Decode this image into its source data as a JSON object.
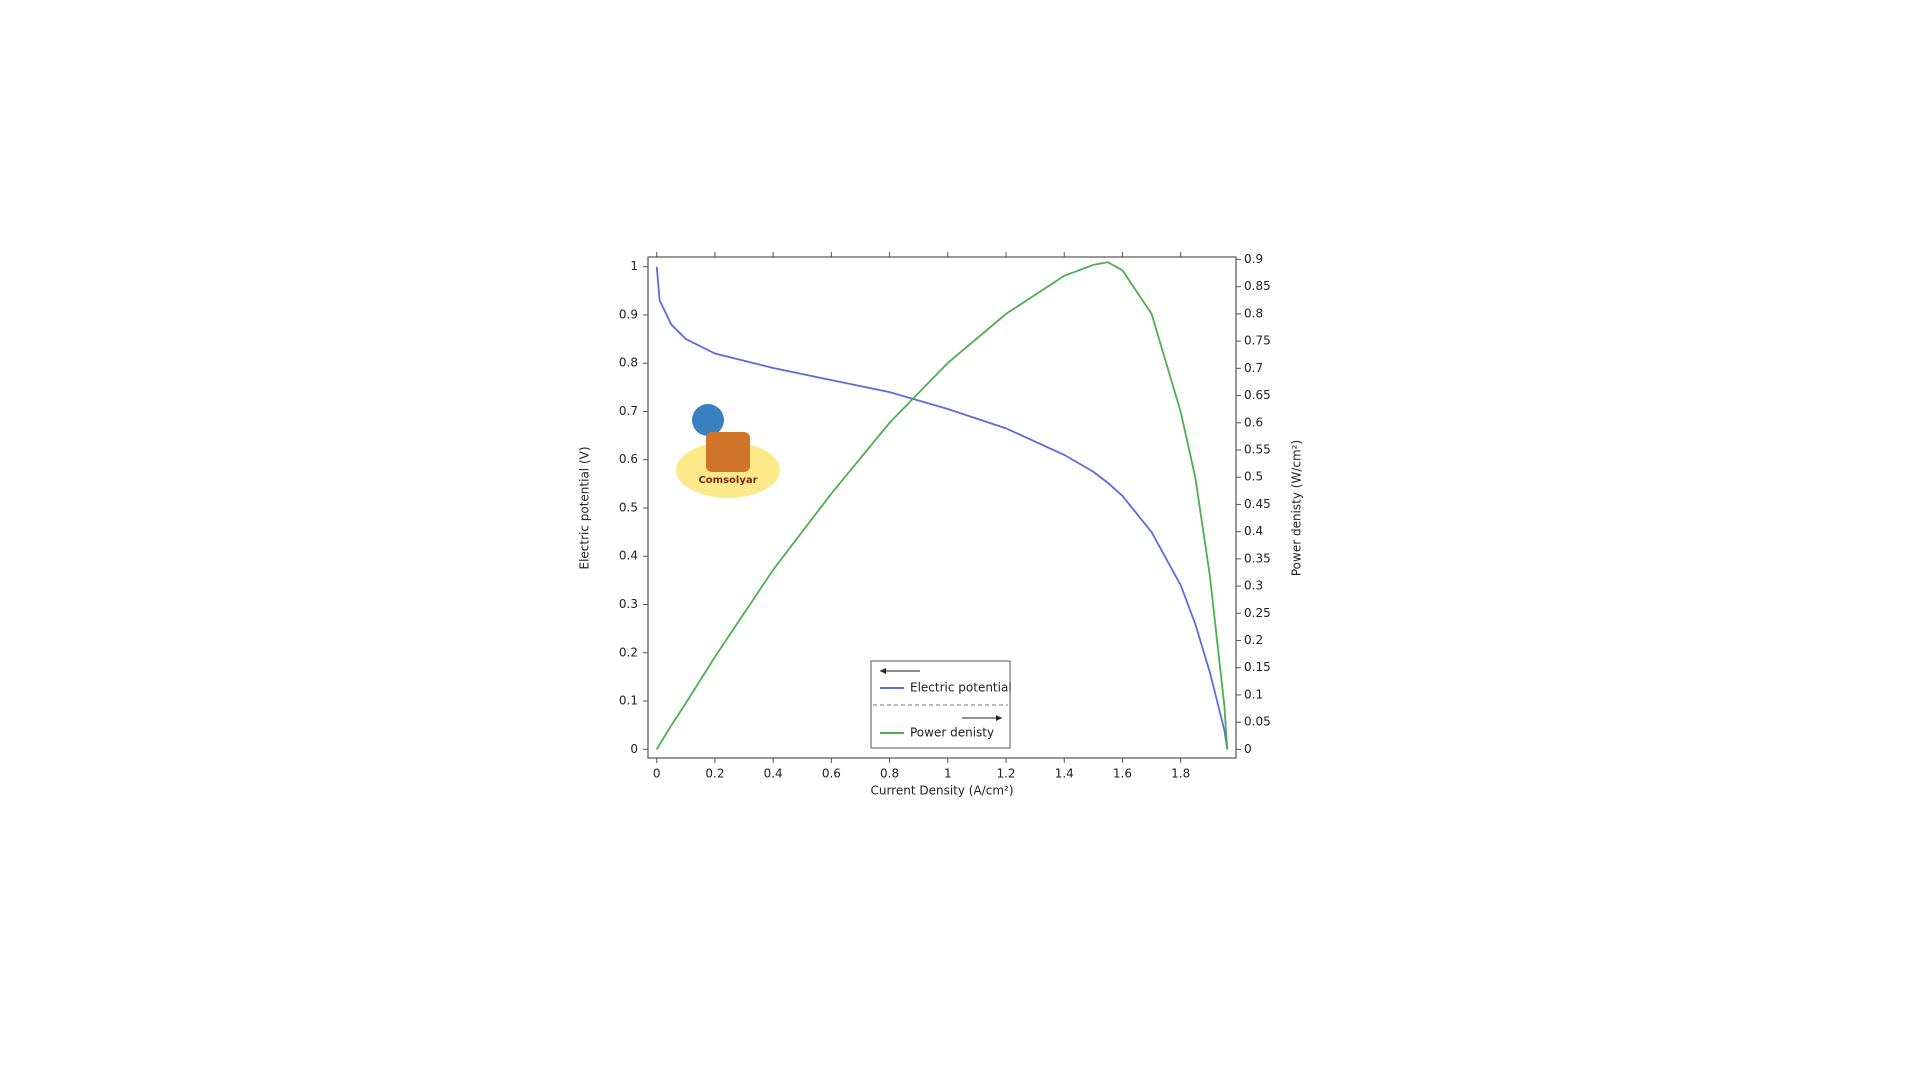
{
  "chart_data": {
    "type": "line",
    "xlabel": "Current Density (A/cm²)",
    "ylabel": "Electric potential (V)",
    "y2label": "Power denisty (W/cm²)",
    "watermark": "Comsolyar",
    "x": [
      0,
      0.01,
      0.05,
      0.1,
      0.2,
      0.4,
      0.6,
      0.8,
      1.0,
      1.2,
      1.4,
      1.5,
      1.55,
      1.6,
      1.7,
      1.8,
      1.85,
      1.9,
      1.95,
      1.96
    ],
    "series": [
      {
        "name": "Electric potential",
        "color": "#5b6be0",
        "values": [
          1.0,
          0.93,
          0.88,
          0.85,
          0.82,
          0.79,
          0.765,
          0.74,
          0.705,
          0.665,
          0.61,
          0.575,
          0.552,
          0.525,
          0.45,
          0.34,
          0.26,
          0.16,
          0.04,
          0
        ]
      },
      {
        "name": "Power denisty",
        "color": "#4caf50",
        "axis": "y2",
        "values": [
          0,
          0.009,
          0.044,
          0.085,
          0.17,
          0.33,
          0.47,
          0.6,
          0.71,
          0.8,
          0.87,
          0.89,
          0.895,
          0.88,
          0.8,
          0.62,
          0.5,
          0.32,
          0.08,
          0
        ]
      }
    ],
    "xlim": [
      -0.03,
      1.99
    ],
    "xticks": [
      0,
      0.2,
      0.4,
      0.6,
      0.8,
      1,
      1.2,
      1.4,
      1.6,
      1.8
    ],
    "ylim": [
      -0.018,
      1.02
    ],
    "yticks": [
      0,
      0.1,
      0.2,
      0.3,
      0.4,
      0.5,
      0.6,
      0.7,
      0.8,
      0.9,
      1
    ],
    "y2lim": [
      -0.0158,
      0.9045
    ],
    "y2ticks": [
      0,
      0.05,
      0.1,
      0.15,
      0.2,
      0.25,
      0.3,
      0.35,
      0.4,
      0.45,
      0.5,
      0.55,
      0.6,
      0.65,
      0.7,
      0.75,
      0.8,
      0.85,
      0.9
    ],
    "grid": false
  }
}
